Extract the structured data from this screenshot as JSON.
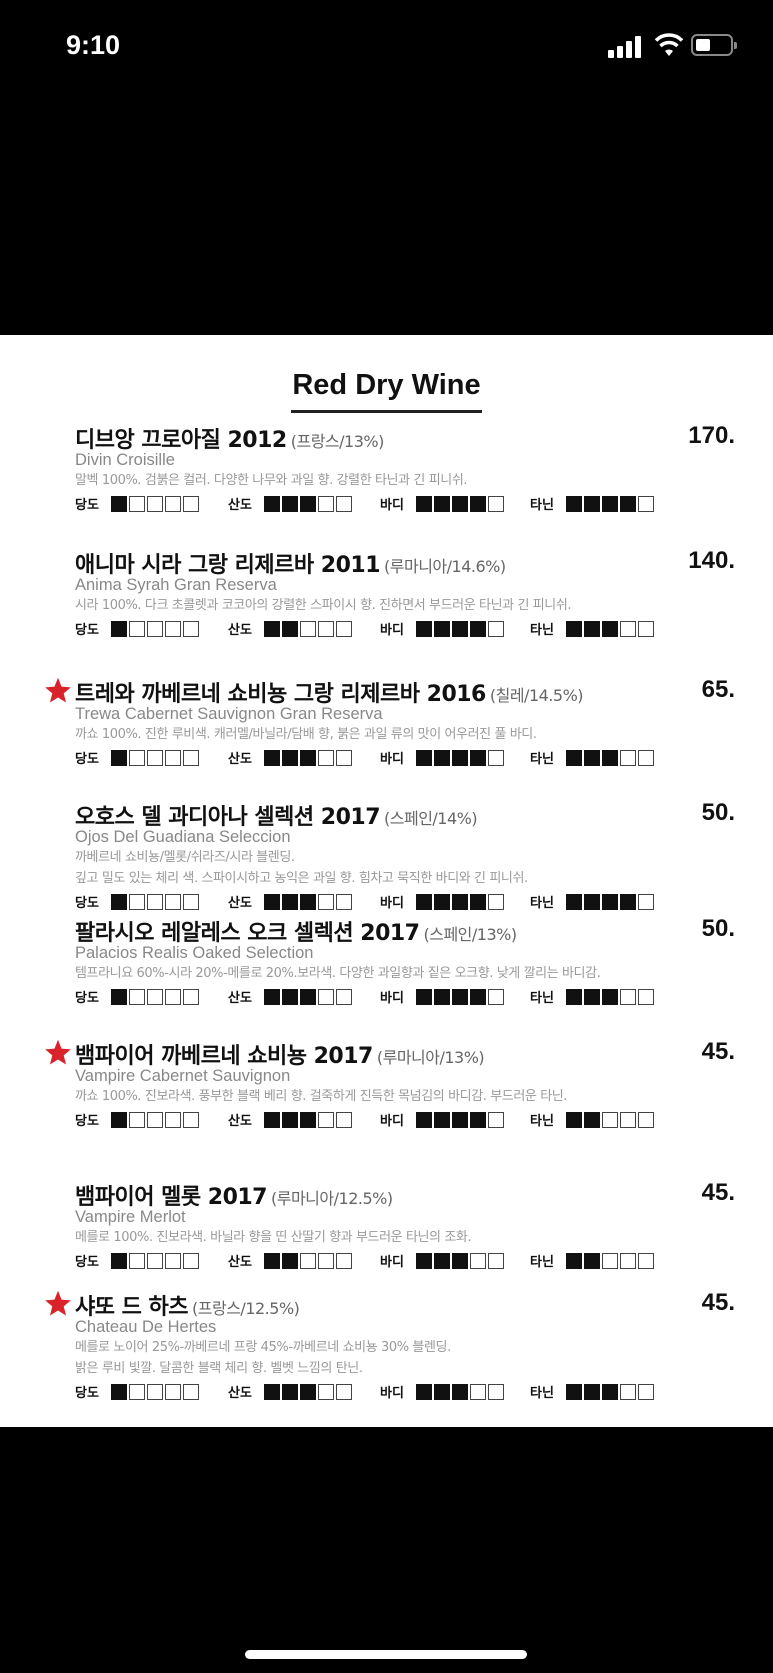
{
  "status_bar": {
    "time": "9:10",
    "icons": [
      "cellular-signal-icon",
      "wifi-icon",
      "battery-icon"
    ],
    "battery_level": 0.35
  },
  "menu": {
    "title": "Red Dry Wine",
    "rating_labels": [
      "당도",
      "산도",
      "바디",
      "타닌"
    ],
    "rating_max": 5,
    "accent_color": "#d9232b",
    "wines": [
      {
        "name": "디브앙 끄로아질 2012",
        "origin": "(프랑스/13%)",
        "price": "170.",
        "english": "Divin Croisille",
        "recommended": false,
        "description": [
          "말벡 100%. 검붉은 컬러. 다양한 나무와 과일 향. 강렬한 타닌과 긴 피니쉬."
        ],
        "ratings": [
          1,
          3,
          4,
          4
        ]
      },
      {
        "name": "애니마 시라 그랑 리제르바 2011",
        "origin": "(루마니아/14.6%)",
        "price": "140.",
        "english": "Anima Syrah Gran Reserva",
        "recommended": false,
        "description": [
          "시라 100%. 다크 초콜렛과 코코아의 강렬한 스파이시 향. 진하면서 부드러운 타닌과 긴 피니쉬."
        ],
        "ratings": [
          1,
          2,
          4,
          3
        ]
      },
      {
        "name": "트레와 까베르네 쇼비뇽 그랑 리제르바 2016",
        "origin": "(칠레/14.5%)",
        "price": "65.",
        "english": "Trewa Cabernet Sauvignon Gran Reserva",
        "recommended": true,
        "description": [
          "까쇼 100%. 진한 루비색. 캐러멜/바닐라/담배 향, 붉은 과일 류의 맛이 어우러진 풀 바디."
        ],
        "ratings": [
          1,
          3,
          4,
          3
        ]
      },
      {
        "name": "오호스 델 과디아나 셀렉션 2017",
        "origin": "(스페인/14%)",
        "price": "50.",
        "english": "Ojos Del Guadiana Seleccion",
        "recommended": false,
        "description": [
          "까베르네 쇼비뇽/멜롯/쉬라즈/시라 블렌딩.",
          "깊고 밀도 있는 체리 색. 스파이시하고 농익은 과일 향. 힘차고 묵직한 바디와 긴 피니쉬."
        ],
        "ratings": [
          1,
          3,
          4,
          4
        ]
      },
      {
        "name": "팔라시오 레알레스 오크 셀렉션 2017",
        "origin": "(스페인/13%)",
        "price": "50.",
        "english": "Palacios Realis Oaked Selection",
        "recommended": false,
        "description": [
          "템프라니요 60%-시라 20%-메를로 20%.보라색. 다양한 과일향과 짙은 오크향. 낮게 깔리는 바디감."
        ],
        "ratings": [
          1,
          3,
          4,
          3
        ]
      },
      {
        "name": "뱀파이어 까베르네 쇼비뇽 2017",
        "origin": "(루마니아/13%)",
        "price": "45.",
        "english": "Vampire Cabernet Sauvignon",
        "recommended": true,
        "description": [
          "까쇼 100%. 진보라색. 풍부한 블랙 베리 향. 걸죽하게 진득한 목넘김의 바디감. 부드러운 타닌."
        ],
        "ratings": [
          1,
          3,
          4,
          2
        ]
      },
      {
        "name": "뱀파이어 멜롯 2017",
        "origin": "(루마니아/12.5%)",
        "price": "45.",
        "english": "Vampire Merlot",
        "recommended": false,
        "description": [
          "메를로 100%. 진보라색. 바닐라 향을 띤 산딸기 향과 부드러운 타닌의 조화."
        ],
        "ratings": [
          1,
          2,
          3,
          2
        ]
      },
      {
        "name": "샤또 드 하츠",
        "origin": "(프랑스/12.5%)",
        "price": "45.",
        "english": "Chateau De Hertes",
        "recommended": true,
        "description": [
          "메를로 노이어 25%-까베르네 프랑 45%-까베르네 쇼비뇽 30% 블렌딩.",
          "밝은 루비 빛깔. 달콤한 블랙 체리 향. 벨벳 느낌의 탄닌."
        ],
        "ratings": [
          1,
          3,
          3,
          3
        ]
      }
    ]
  }
}
